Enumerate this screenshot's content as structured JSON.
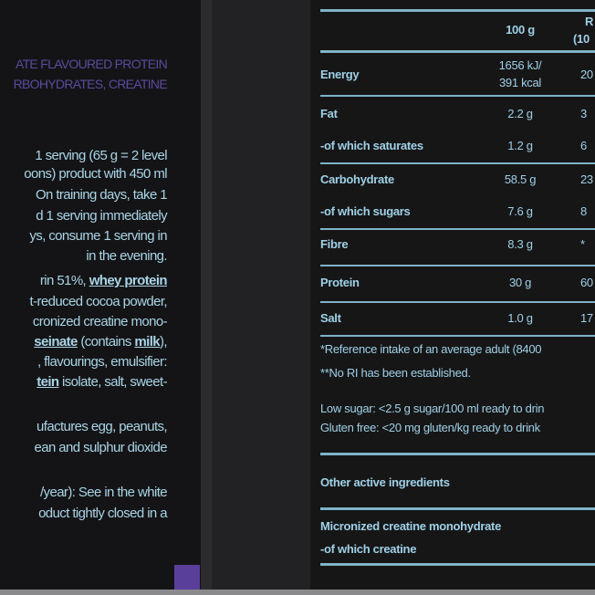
{
  "colors": {
    "heading": "#5b4a9e",
    "text": "#a9d4e6",
    "swatch": "#5a3f9a"
  },
  "left": {
    "headings": [
      "ATE FLAVOURED PROTEIN",
      "RBOHYDRATES, CREATINE"
    ],
    "lines": [
      [
        {
          "t": "1 serving (65 g = 2 level"
        }
      ],
      [
        {
          "t": "oons) product with 450 ml"
        }
      ],
      [
        {
          "t": "On training days, take 1"
        }
      ],
      [
        {
          "t": "d 1 serving immediately"
        }
      ],
      [
        {
          "t": "ys, consume 1 serving in"
        }
      ],
      [
        {
          "t": "in the evening."
        }
      ],
      [
        {
          "t": "rin 51%, "
        },
        {
          "t": "whey protein",
          "b": true
        }
      ],
      [
        {
          "t": "t-reduced cocoa powder,"
        }
      ],
      [
        {
          "t": "cronized creatine mono-"
        }
      ],
      [
        {
          "t": "seinate",
          "b": true
        },
        {
          "t": " (contains "
        },
        {
          "t": "milk",
          "b": true
        },
        {
          "t": "),"
        }
      ],
      [
        {
          "t": ", flavourings, emulsifier:"
        }
      ],
      [
        {
          "t": "tein",
          "b": true
        },
        {
          "t": " isolate, salt, sweet-"
        }
      ],
      [
        {
          "t": "ufactures egg, peanuts,"
        }
      ],
      [
        {
          "t": "ean and sulphur dioxide"
        }
      ],
      [
        {
          "t": "/year): See in the white"
        }
      ],
      [
        {
          "t": "oduct tightly closed in a"
        }
      ]
    ]
  },
  "table": {
    "header": {
      "col2": "100 g",
      "col3_line1": "R",
      "col3_line2": "(10"
    },
    "rows": [
      {
        "label": "Energy",
        "v1": "1656 kJ/",
        "v1b": "391 kcal",
        "v2": "20"
      },
      {
        "label": "Fat",
        "v1": "2.2 g",
        "v2": "3"
      },
      {
        "label": "-of which saturates",
        "v1": "1.2 g",
        "v2": "6"
      },
      {
        "label": "Carbohydrate",
        "v1": "58.5 g",
        "v2": "23"
      },
      {
        "label": "-of which sugars",
        "v1": "7.6 g",
        "v2": "8"
      },
      {
        "label": "Fibre",
        "v1": "8.3 g",
        "v2": "*"
      },
      {
        "label": "Protein",
        "v1": "30 g",
        "v2": "60"
      },
      {
        "label": "Salt",
        "v1": "1.0 g",
        "v2": "17"
      }
    ],
    "footnotes": [
      "*Reference intake of an average adult (8400",
      "**No RI has been established."
    ],
    "claims": [
      "Low sugar: <2.5 g sugar/100 ml ready to drin",
      "Gluten free: <20 mg gluten/kg ready to drink"
    ],
    "other_heading": "Other active ingredients",
    "other_rows": [
      "Micronized creatine monohydrate",
      "-of which creatine"
    ]
  }
}
